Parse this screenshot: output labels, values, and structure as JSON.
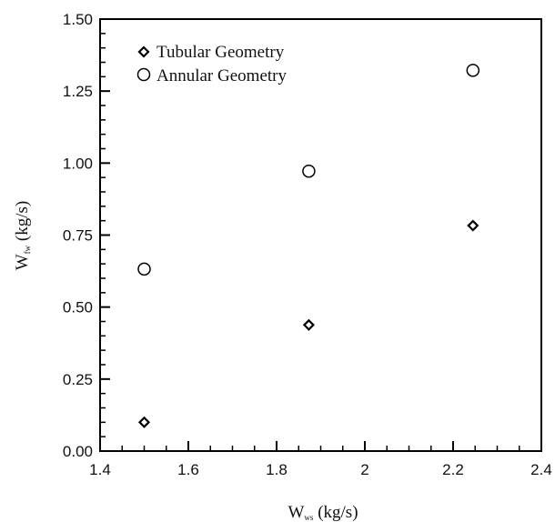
{
  "chart_data": {
    "type": "scatter",
    "title": "",
    "xlabel": {
      "main": "W",
      "sub": "ws",
      "unit": " (kg/s)"
    },
    "ylabel": {
      "main": "W",
      "sub": "fw",
      "unit": " (kg/s)"
    },
    "xlim": [
      1.4,
      2.4
    ],
    "ylim": [
      0.0,
      1.5
    ],
    "x_ticks": [
      "1.4",
      "1.6",
      "1.8",
      "2",
      "2.2",
      "2.4"
    ],
    "y_ticks": [
      "0.00",
      "0.25",
      "0.50",
      "0.75",
      "1.00",
      "1.25",
      "1.50"
    ],
    "grid": false,
    "legend_position": "top-left",
    "series": [
      {
        "name": "Tubular Geometry",
        "marker": "diamond",
        "color": "#000000",
        "points": [
          {
            "x": 1.5,
            "y": 0.1
          },
          {
            "x": 1.873,
            "y": 0.438
          },
          {
            "x": 2.245,
            "y": 0.783
          }
        ]
      },
      {
        "name": "Annular Geometry",
        "marker": "circle",
        "color": "#000000",
        "points": [
          {
            "x": 1.5,
            "y": 0.632
          },
          {
            "x": 1.873,
            "y": 0.972
          },
          {
            "x": 2.245,
            "y": 1.322
          }
        ]
      }
    ]
  }
}
